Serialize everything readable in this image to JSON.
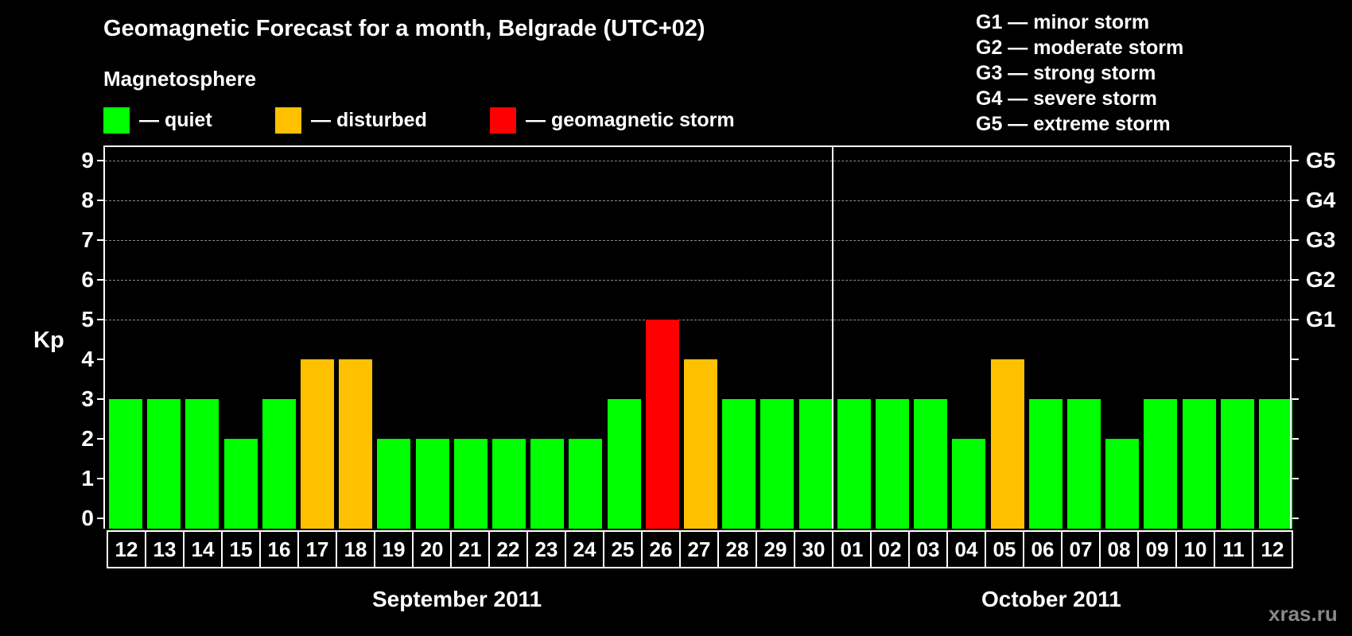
{
  "header": {
    "title": "Geomagnetic Forecast for a month, Belgrade (UTC+02)",
    "subtitle": "Magnetosphere"
  },
  "legend": [
    {
      "label": "— quiet",
      "color": "#00ff00"
    },
    {
      "label": "— disturbed",
      "color": "#ffc000"
    },
    {
      "label": "— geomagnetic storm",
      "color": "#ff0000"
    }
  ],
  "g_legend": [
    "G1 — minor storm",
    "G2 — moderate storm",
    "G3 — strong storm",
    "G4 — severe storm",
    "G5 — extreme storm"
  ],
  "axes": {
    "ylabel": "Kp",
    "yticks": [
      "0",
      "1",
      "2",
      "3",
      "4",
      "5",
      "6",
      "7",
      "8",
      "9"
    ],
    "right_ticks": {
      "5": "G1",
      "6": "G2",
      "7": "G3",
      "8": "G4",
      "9": "G5"
    }
  },
  "months": [
    "September 2011",
    "October 2011"
  ],
  "watermark": "xras.ru",
  "colors": {
    "quiet": "#00ff00",
    "disturbed": "#ffc000",
    "storm": "#ff0000",
    "background": "#000000",
    "grid": "#8a8a8a"
  },
  "chart_data": {
    "type": "bar",
    "title": "Geomagnetic Forecast for a month, Belgrade (UTC+02)",
    "xlabel": "September 2011 / October 2011",
    "ylabel": "Kp",
    "ylim": [
      0,
      9
    ],
    "grid": "dashed horizontal at Kp 5-9",
    "categories": [
      "12",
      "13",
      "14",
      "15",
      "16",
      "17",
      "18",
      "19",
      "20",
      "21",
      "22",
      "23",
      "24",
      "25",
      "26",
      "27",
      "28",
      "29",
      "30",
      "01",
      "02",
      "03",
      "04",
      "05",
      "06",
      "07",
      "08",
      "09",
      "10",
      "11",
      "12"
    ],
    "values": [
      3,
      3,
      3,
      2,
      3,
      4,
      4,
      2,
      2,
      2,
      2,
      2,
      2,
      3,
      5,
      4,
      3,
      3,
      3,
      3,
      3,
      3,
      2,
      4,
      3,
      3,
      2,
      3,
      3,
      3,
      3
    ],
    "status": [
      "quiet",
      "quiet",
      "quiet",
      "quiet",
      "quiet",
      "disturbed",
      "disturbed",
      "quiet",
      "quiet",
      "quiet",
      "quiet",
      "quiet",
      "quiet",
      "quiet",
      "storm",
      "disturbed",
      "quiet",
      "quiet",
      "quiet",
      "quiet",
      "quiet",
      "quiet",
      "quiet",
      "disturbed",
      "quiet",
      "quiet",
      "quiet",
      "quiet",
      "quiet",
      "quiet",
      "quiet"
    ],
    "legend": [
      "quiet",
      "disturbed",
      "geomagnetic storm"
    ],
    "secondary_axis": {
      "5": "G1",
      "6": "G2",
      "7": "G3",
      "8": "G4",
      "9": "G5"
    }
  }
}
